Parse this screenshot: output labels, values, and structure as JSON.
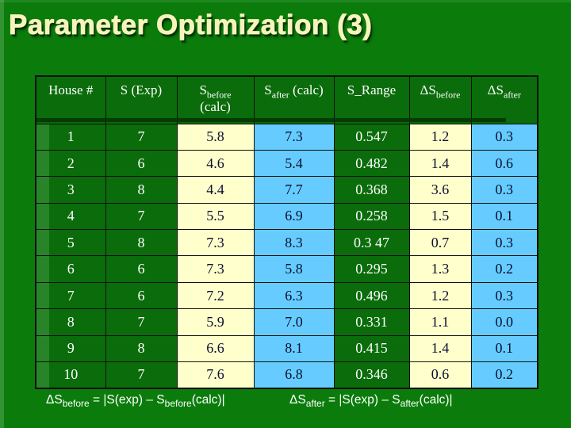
{
  "title": "Parameter Optimization (3)",
  "colors": {
    "bg-green": "#0b7c0b",
    "cell-green": "#0a6c0a",
    "cell-cream": "#ffffcc",
    "cell-blue": "#66ccff",
    "title-yellow": "#f6f4bc",
    "grid-line": "#0d120d",
    "dark-text": "#0a1030",
    "light-text": "#ffffff"
  },
  "table": {
    "column_keys": [
      "house-number",
      "s-exp",
      "s-before-calc",
      "s-after-calc",
      "s-range",
      "delta-s-before",
      "delta-s-after"
    ],
    "headers": [
      {
        "base": "House #",
        "sub": "",
        "after": "",
        "line2": ""
      },
      {
        "base": "S (Exp)",
        "sub": "",
        "after": "",
        "line2": ""
      },
      {
        "base": "S",
        "sub": "before",
        "after": "",
        "line2": "(calc)"
      },
      {
        "base": "S",
        "sub": "after",
        "after": " (calc)",
        "line2": ""
      },
      {
        "base": "S_Range",
        "sub": "",
        "after": "",
        "line2": ""
      },
      {
        "base": "ΔS",
        "sub": "before",
        "after": "",
        "line2": ""
      },
      {
        "base": "ΔS",
        "sub": "after",
        "after": "",
        "line2": ""
      }
    ],
    "rows": [
      [
        "1",
        "7",
        "5.8",
        "7.3",
        "0.547",
        "1.2",
        "0.3"
      ],
      [
        "2",
        "6",
        "4.6",
        "5.4",
        "0.482",
        "1.4",
        "0.6"
      ],
      [
        "3",
        "8",
        "4.4",
        "7.7",
        "0.368",
        "3.6",
        "0.3"
      ],
      [
        "4",
        "7",
        "5.5",
        "6.9",
        "0.258",
        "1.5",
        "0.1"
      ],
      [
        "5",
        "8",
        "7.3",
        "8.3",
        "0.3 47",
        "0.7",
        "0.3"
      ],
      [
        "6",
        "6",
        "7.3",
        "5.8",
        "0.295",
        "1.3",
        "0.2"
      ],
      [
        "7",
        "6",
        "7.2",
        "6.3",
        "0.496",
        "1.2",
        "0.3"
      ],
      [
        "8",
        "7",
        "5.9",
        "7.0",
        "0.331",
        "1.1",
        "0.0"
      ],
      [
        "9",
        "8",
        "6.6",
        "8.1",
        "0.415",
        "1.4",
        "0.1"
      ],
      [
        "10",
        "7",
        "7.6",
        "6.8",
        "0.346",
        "0.6",
        "0.2"
      ]
    ]
  },
  "formulas": {
    "left": {
      "base": "ΔS",
      "base_sub": "before",
      "mid": " = |S(exp) – S",
      "mid_sub": "before",
      "tail": "(calc)|"
    },
    "right": {
      "base": "ΔS",
      "base_sub": "after",
      "mid": " = |S(exp) – S",
      "mid_sub": "after",
      "tail": "(calc)|"
    }
  }
}
